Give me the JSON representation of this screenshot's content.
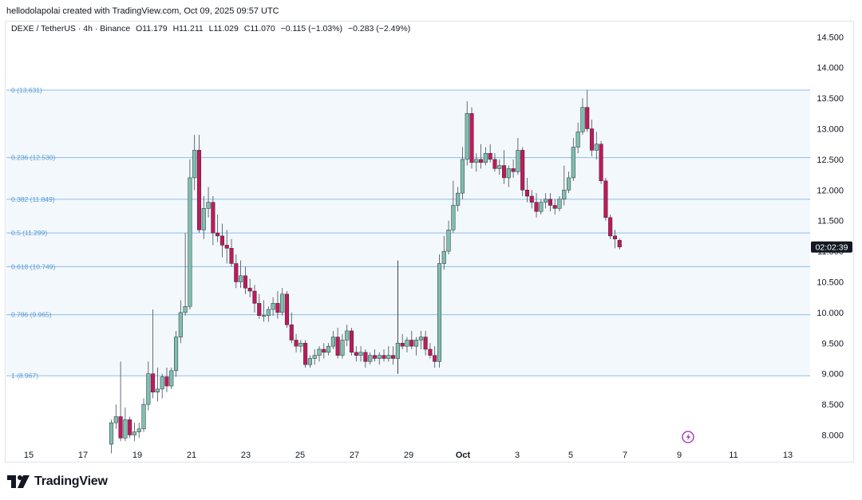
{
  "attribution": "hellodolapolai created with TradingView.com, Oct 09, 2025 09:57 UTC",
  "legend": {
    "symbol": "DEXE / TetherUS · 4h · Binance",
    "open": "O11.179",
    "high": "H11.211",
    "low": "L11.029",
    "close": "C11.070",
    "change": "−0.115 (−1.03%)",
    "change2": "−0.283 (−2.49%)"
  },
  "brand": {
    "name": "TradingView",
    "logo_icon": "tradingview-logo-icon"
  },
  "price_label": "02:02:39",
  "chart_data": {
    "type": "candlestick",
    "interval": "4h",
    "colors": {
      "up": "#7fbfb0",
      "down": "#c2185b",
      "fib_line": "#8cbde8",
      "fib_text": "#5b9bd5",
      "fib_fill": "#f3f8fd"
    },
    "y_axis": {
      "min": 7.8,
      "max": 14.7,
      "ticks": [
        "8.000",
        "8.500",
        "9.000",
        "9.500",
        "10.000",
        "10.500",
        "11.000",
        "11.500",
        "12.000",
        "12.500",
        "13.000",
        "13.500",
        "14.000",
        "14.500"
      ]
    },
    "x_axis": {
      "ticks": [
        "15",
        "17",
        "19",
        "21",
        "23",
        "25",
        "27",
        "29",
        "Oct",
        "3",
        "5",
        "7",
        "9",
        "11",
        "13"
      ]
    },
    "fib_levels": [
      {
        "label": "0 (13.631)",
        "price": 13.631
      },
      {
        "label": "0.236 (12.530)",
        "price": 12.53
      },
      {
        "label": "0.382 (11.849)",
        "price": 11.849
      },
      {
        "label": "0.5 (11.299)",
        "price": 11.299
      },
      {
        "label": "0.618 (10.749)",
        "price": 10.749
      },
      {
        "label": "0.786 (9.965)",
        "price": 9.965
      },
      {
        "label": "1 (8.967)",
        "price": 8.967
      }
    ],
    "candles": [
      [
        18.04,
        7.85,
        8.25,
        7.7,
        8.2
      ],
      [
        18.21,
        8.2,
        8.5,
        8.1,
        8.3
      ],
      [
        18.38,
        8.3,
        9.2,
        7.9,
        7.95
      ],
      [
        18.55,
        7.95,
        8.45,
        7.9,
        8.25
      ],
      [
        18.72,
        8.25,
        8.3,
        7.95,
        8.0
      ],
      [
        18.89,
        8.0,
        8.2,
        7.9,
        8.05
      ],
      [
        19.06,
        8.05,
        8.2,
        7.95,
        8.1
      ],
      [
        19.23,
        8.1,
        8.6,
        8.05,
        8.5
      ],
      [
        19.4,
        8.5,
        9.2,
        8.4,
        9.0
      ],
      [
        19.57,
        9.0,
        10.05,
        8.6,
        8.7
      ],
      [
        19.74,
        8.7,
        9.1,
        8.55,
        8.75
      ],
      [
        19.91,
        8.75,
        9.0,
        8.6,
        8.95
      ],
      [
        20.08,
        8.95,
        9.1,
        8.7,
        8.8
      ],
      [
        20.25,
        8.8,
        9.1,
        8.75,
        9.05
      ],
      [
        20.42,
        9.05,
        9.7,
        8.95,
        9.6
      ],
      [
        20.59,
        9.6,
        10.2,
        9.5,
        10.0
      ],
      [
        20.76,
        10.0,
        11.3,
        9.95,
        10.1
      ],
      [
        20.93,
        10.1,
        12.5,
        10.05,
        12.2
      ],
      [
        21.1,
        12.2,
        12.9,
        12.0,
        12.65
      ],
      [
        21.27,
        12.65,
        12.9,
        11.3,
        11.35
      ],
      [
        21.44,
        11.35,
        11.9,
        11.2,
        11.7
      ],
      [
        21.61,
        11.7,
        12.05,
        11.55,
        11.8
      ],
      [
        21.78,
        11.8,
        11.9,
        11.1,
        11.3
      ],
      [
        21.95,
        11.3,
        11.6,
        11.15,
        11.25
      ],
      [
        22.12,
        11.25,
        11.45,
        10.9,
        11.1
      ],
      [
        22.29,
        11.1,
        11.35,
        10.8,
        11.05
      ],
      [
        22.46,
        11.05,
        11.2,
        10.75,
        10.8
      ],
      [
        22.63,
        10.8,
        10.95,
        10.4,
        10.5
      ],
      [
        22.8,
        10.5,
        10.85,
        10.4,
        10.6
      ],
      [
        22.97,
        10.6,
        10.75,
        10.3,
        10.4
      ],
      [
        23.14,
        10.4,
        10.55,
        10.25,
        10.35
      ],
      [
        23.31,
        10.35,
        10.45,
        10.0,
        10.15
      ],
      [
        23.48,
        10.15,
        10.3,
        9.9,
        9.95
      ],
      [
        23.65,
        9.95,
        10.2,
        9.85,
        9.95
      ],
      [
        23.82,
        9.95,
        10.1,
        9.85,
        10.05
      ],
      [
        23.99,
        10.05,
        10.25,
        9.95,
        10.15
      ],
      [
        24.16,
        10.15,
        10.35,
        9.9,
        10.0
      ],
      [
        24.33,
        10.0,
        10.4,
        9.95,
        10.3
      ],
      [
        24.5,
        10.3,
        10.35,
        9.75,
        9.8
      ],
      [
        24.67,
        9.8,
        10.0,
        9.5,
        9.55
      ],
      [
        24.84,
        9.55,
        9.65,
        9.35,
        9.45
      ],
      [
        25.01,
        9.45,
        9.55,
        9.35,
        9.5
      ],
      [
        25.18,
        9.5,
        9.55,
        9.1,
        9.15
      ],
      [
        25.35,
        9.15,
        9.3,
        9.1,
        9.25
      ],
      [
        25.52,
        9.25,
        9.4,
        9.15,
        9.3
      ],
      [
        25.69,
        9.3,
        9.45,
        9.2,
        9.4
      ],
      [
        25.86,
        9.4,
        9.5,
        9.25,
        9.35
      ],
      [
        26.03,
        9.35,
        9.5,
        9.3,
        9.45
      ],
      [
        26.2,
        9.45,
        9.7,
        9.4,
        9.6
      ],
      [
        26.37,
        9.6,
        9.75,
        9.25,
        9.3
      ],
      [
        26.54,
        9.3,
        9.65,
        9.25,
        9.55
      ],
      [
        26.71,
        9.55,
        9.8,
        9.45,
        9.7
      ],
      [
        26.88,
        9.7,
        9.75,
        9.3,
        9.35
      ],
      [
        27.05,
        9.35,
        9.45,
        9.2,
        9.3
      ],
      [
        27.22,
        9.3,
        9.45,
        9.2,
        9.35
      ],
      [
        27.39,
        9.35,
        9.4,
        9.1,
        9.2
      ],
      [
        27.56,
        9.2,
        9.35,
        9.15,
        9.3
      ],
      [
        27.73,
        9.3,
        9.4,
        9.2,
        9.25
      ],
      [
        27.9,
        9.25,
        9.35,
        9.15,
        9.3
      ],
      [
        28.07,
        9.3,
        9.4,
        9.2,
        9.25
      ],
      [
        28.24,
        9.25,
        9.45,
        9.2,
        9.3
      ],
      [
        28.41,
        9.3,
        9.45,
        9.15,
        9.25
      ],
      [
        28.58,
        9.25,
        10.85,
        9.0,
        9.5
      ],
      [
        28.75,
        9.5,
        9.65,
        9.4,
        9.45
      ],
      [
        28.92,
        9.45,
        9.6,
        9.35,
        9.55
      ],
      [
        29.09,
        9.55,
        9.7,
        9.4,
        9.45
      ],
      [
        29.26,
        9.45,
        9.6,
        9.3,
        9.55
      ],
      [
        29.43,
        9.55,
        9.7,
        9.4,
        9.6
      ],
      [
        29.6,
        9.6,
        9.7,
        9.3,
        9.4
      ],
      [
        29.77,
        9.4,
        9.5,
        9.25,
        9.3
      ],
      [
        29.94,
        9.3,
        9.45,
        9.1,
        9.2
      ],
      [
        30.11,
        9.2,
        10.95,
        9.1,
        10.8
      ],
      [
        30.28,
        10.8,
        11.25,
        10.7,
        11.0
      ],
      [
        30.45,
        11.0,
        11.5,
        10.95,
        11.35
      ],
      [
        30.62,
        11.35,
        12.15,
        11.3,
        11.75
      ],
      [
        30.79,
        11.75,
        12.05,
        11.65,
        11.95
      ],
      [
        30.96,
        11.95,
        12.7,
        11.85,
        12.5
      ],
      [
        31.13,
        12.5,
        13.45,
        12.4,
        13.25
      ],
      [
        31.3,
        13.25,
        13.35,
        12.35,
        12.45
      ],
      [
        31.47,
        12.45,
        12.6,
        12.3,
        12.5
      ],
      [
        31.64,
        12.5,
        12.75,
        12.35,
        12.45
      ],
      [
        31.81,
        12.45,
        12.7,
        12.4,
        12.6
      ],
      [
        31.98,
        12.6,
        12.75,
        12.45,
        12.5
      ],
      [
        32.15,
        12.5,
        12.6,
        12.3,
        12.35
      ],
      [
        32.32,
        12.35,
        12.5,
        12.25,
        12.4
      ],
      [
        32.49,
        12.4,
        12.65,
        12.1,
        12.2
      ],
      [
        32.66,
        12.2,
        12.4,
        12.05,
        12.35
      ],
      [
        32.83,
        12.35,
        12.5,
        12.2,
        12.3
      ],
      [
        33.0,
        12.3,
        12.85,
        12.25,
        12.65
      ],
      [
        33.17,
        12.65,
        12.7,
        11.9,
        12.0
      ],
      [
        33.34,
        12.0,
        12.2,
        11.8,
        11.9
      ],
      [
        33.51,
        11.9,
        12.0,
        11.7,
        11.8
      ],
      [
        33.68,
        11.8,
        11.95,
        11.55,
        11.65
      ],
      [
        33.85,
        11.65,
        11.85,
        11.6,
        11.8
      ],
      [
        34.02,
        11.8,
        11.95,
        11.7,
        11.85
      ],
      [
        34.19,
        11.85,
        11.95,
        11.65,
        11.75
      ],
      [
        34.36,
        11.75,
        11.85,
        11.6,
        11.7
      ],
      [
        34.53,
        11.7,
        11.9,
        11.65,
        11.85
      ],
      [
        34.7,
        11.85,
        12.4,
        11.75,
        12.0
      ],
      [
        34.87,
        12.0,
        12.3,
        11.95,
        12.2
      ],
      [
        35.04,
        12.2,
        12.85,
        12.15,
        12.7
      ],
      [
        35.21,
        12.7,
        13.1,
        12.6,
        12.95
      ],
      [
        35.38,
        12.95,
        13.5,
        12.9,
        13.35
      ],
      [
        35.55,
        13.35,
        13.63,
        12.95,
        13.0
      ],
      [
        35.72,
        13.0,
        13.15,
        12.55,
        12.65
      ],
      [
        35.89,
        12.65,
        12.95,
        12.5,
        12.75
      ],
      [
        36.06,
        12.75,
        12.8,
        12.1,
        12.15
      ],
      [
        36.23,
        12.15,
        12.2,
        11.5,
        11.55
      ],
      [
        36.4,
        11.55,
        11.6,
        11.2,
        11.25
      ],
      [
        36.57,
        11.25,
        11.35,
        11.05,
        11.2
      ],
      [
        36.74,
        11.179,
        11.211,
        11.029,
        11.07
      ]
    ]
  }
}
